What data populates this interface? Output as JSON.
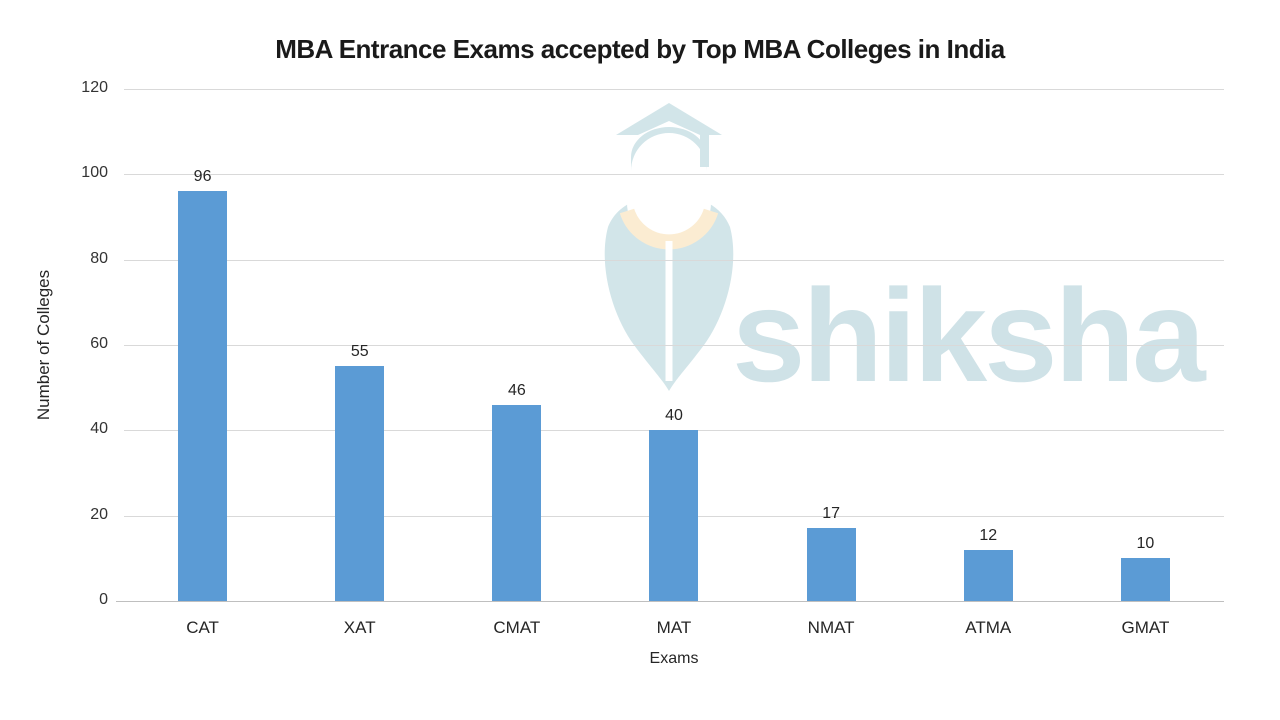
{
  "title": "MBA Entrance Exams accepted by Top MBA Colleges in India",
  "chart_data": {
    "type": "bar",
    "categories": [
      "CAT",
      "XAT",
      "CMAT",
      "MAT",
      "NMAT",
      "ATMA",
      "GMAT"
    ],
    "values": [
      96,
      55,
      46,
      40,
      17,
      12,
      10
    ],
    "title": "MBA Entrance Exams accepted by Top MBA Colleges in India",
    "xlabel": "Exams",
    "ylabel": "Number of Colleges",
    "ylim": [
      0,
      120
    ],
    "ytick_step": 20,
    "grid": true,
    "legend": false,
    "data_labels": true,
    "bar_color": "#5b9bd5",
    "gridline_color": "#d9d9d9",
    "axis_line_color": "#bfbfbf",
    "text_color": "#262626"
  },
  "watermark": {
    "text": "shiksha",
    "logo": "shiksha-graduation-cap-pen-nib",
    "text_color": "#cfe2e7",
    "shape_color": "#d2e5e9",
    "accent_color": "#fbecd2"
  }
}
